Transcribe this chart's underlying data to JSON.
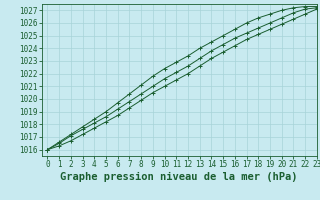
{
  "title": "Graphe pression niveau de la mer (hPa)",
  "background_color": "#c8eaf0",
  "grid_color": "#a8d4d8",
  "line_color": "#1a5e30",
  "xlim": [
    -0.5,
    23
  ],
  "ylim": [
    1015.5,
    1027.5
  ],
  "xticks": [
    0,
    1,
    2,
    3,
    4,
    5,
    6,
    7,
    8,
    9,
    10,
    11,
    12,
    13,
    14,
    15,
    16,
    17,
    18,
    19,
    20,
    21,
    22,
    23
  ],
  "yticks": [
    1016,
    1017,
    1018,
    1019,
    1020,
    1021,
    1022,
    1023,
    1024,
    1025,
    1026,
    1027
  ],
  "x": [
    0,
    1,
    2,
    3,
    4,
    5,
    6,
    7,
    8,
    9,
    10,
    11,
    12,
    13,
    14,
    15,
    16,
    17,
    18,
    19,
    20,
    21,
    22,
    23
  ],
  "y_mid": [
    1016.0,
    1016.5,
    1017.1,
    1017.6,
    1018.1,
    1018.6,
    1019.2,
    1019.8,
    1020.4,
    1021.0,
    1021.6,
    1022.1,
    1022.6,
    1023.2,
    1023.8,
    1024.3,
    1024.8,
    1025.2,
    1025.6,
    1026.0,
    1026.4,
    1026.8,
    1027.1,
    1027.2
  ],
  "y_high": [
    1016.0,
    1016.6,
    1017.2,
    1017.8,
    1018.4,
    1019.0,
    1019.7,
    1020.4,
    1021.1,
    1021.8,
    1022.4,
    1022.9,
    1023.4,
    1024.0,
    1024.5,
    1025.0,
    1025.5,
    1026.0,
    1026.4,
    1026.7,
    1027.0,
    1027.2,
    1027.3,
    1027.3
  ],
  "y_low": [
    1016.0,
    1016.3,
    1016.7,
    1017.2,
    1017.7,
    1018.2,
    1018.7,
    1019.3,
    1019.9,
    1020.5,
    1021.0,
    1021.5,
    1022.0,
    1022.6,
    1023.2,
    1023.7,
    1024.2,
    1024.7,
    1025.1,
    1025.5,
    1025.9,
    1026.3,
    1026.7,
    1027.1
  ],
  "title_fontsize": 7.5,
  "tick_fontsize": 5.5
}
